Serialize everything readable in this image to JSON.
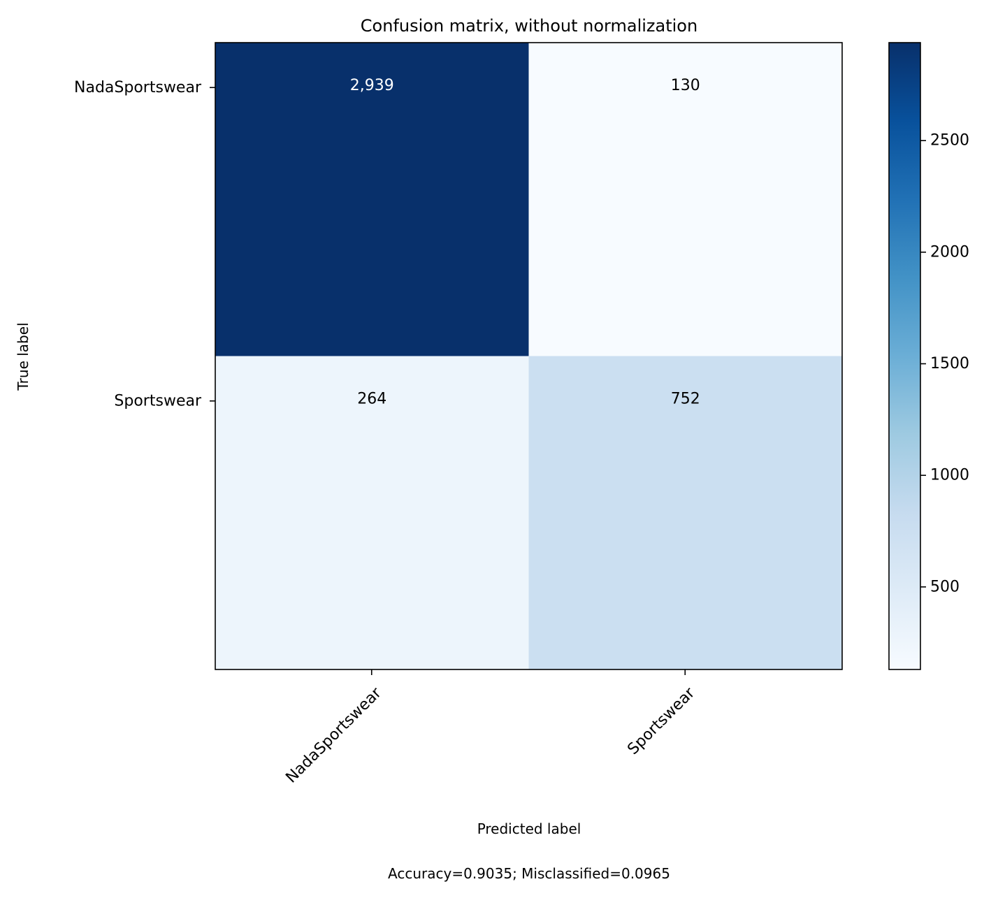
{
  "chart_data": {
    "type": "heatmap",
    "title": "Confusion matrix, without normalization",
    "xlabel": "Predicted label",
    "ylabel": "True label",
    "footer": "Accuracy=0.9035; Misclassified=0.0965",
    "x_categories": [
      "NadaSportswear",
      "Sportswear"
    ],
    "y_categories": [
      "NadaSportswear",
      "Sportswear"
    ],
    "matrix": [
      [
        2939,
        130
      ],
      [
        264,
        752
      ]
    ],
    "cell_labels": [
      [
        "2,939",
        "130"
      ],
      [
        "264",
        "752"
      ]
    ],
    "colormap": "Blues",
    "colorbar": {
      "range": [
        130,
        2939
      ],
      "ticks": [
        500,
        1000,
        1500,
        2000,
        2500
      ],
      "tick_labels": [
        "500",
        "1000",
        "1500",
        "2000",
        "2500"
      ]
    },
    "grid": false,
    "legend": "none"
  }
}
